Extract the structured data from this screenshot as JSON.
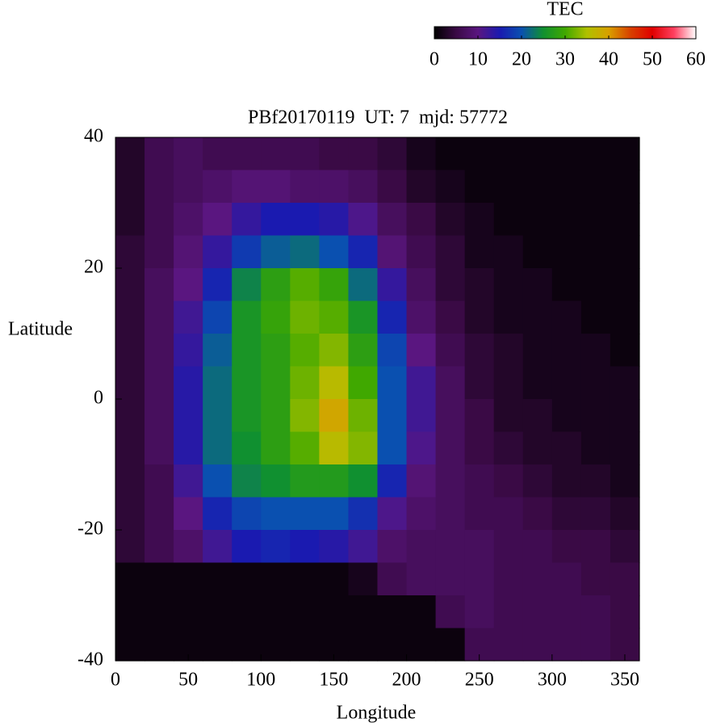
{
  "chart_data": {
    "type": "heatmap",
    "title": "PBf20170119  UT: 7  mjd: 57772",
    "x_label": "Longitude",
    "y_label": "Latitude",
    "x": [
      10,
      30,
      50,
      70,
      90,
      110,
      130,
      150,
      170,
      190,
      210,
      230,
      250,
      270,
      290,
      310,
      330,
      350
    ],
    "y": [
      37.5,
      32.5,
      27.5,
      22.5,
      17.5,
      12.5,
      7.5,
      2.5,
      -2.5,
      -7.5,
      -12.5,
      -17.5,
      -22.5,
      -27.5,
      -32.5,
      -37.5
    ],
    "z": [
      [
        3,
        6,
        7,
        6,
        6,
        6,
        6,
        5,
        5,
        4,
        2,
        1,
        1,
        1,
        1,
        1,
        1,
        1
      ],
      [
        3,
        6,
        7,
        8,
        9,
        9,
        8,
        8,
        7,
        5,
        3,
        2,
        1,
        1,
        1,
        1,
        1,
        1
      ],
      [
        3,
        6,
        8,
        10,
        13,
        15,
        15,
        14,
        11,
        7,
        5,
        3,
        2,
        1,
        1,
        1,
        1,
        1
      ],
      [
        4,
        6,
        9,
        13,
        18,
        21,
        22,
        20,
        16,
        9,
        6,
        4,
        2,
        2,
        1,
        1,
        1,
        1
      ],
      [
        4,
        7,
        10,
        16,
        24,
        28,
        31,
        29,
        22,
        13,
        7,
        4,
        3,
        2,
        2,
        1,
        1,
        1
      ],
      [
        4,
        7,
        12,
        19,
        26,
        29,
        32,
        31,
        26,
        16,
        8,
        5,
        3,
        2,
        2,
        2,
        1,
        1
      ],
      [
        4,
        7,
        13,
        21,
        26,
        28,
        31,
        33,
        28,
        19,
        10,
        6,
        4,
        3,
        2,
        2,
        2,
        1
      ],
      [
        4,
        7,
        14,
        22,
        26,
        28,
        32,
        36,
        30,
        20,
        12,
        7,
        4,
        3,
        2,
        2,
        2,
        2
      ],
      [
        4,
        7,
        14,
        22,
        26,
        28,
        33,
        39,
        32,
        20,
        12,
        7,
        5,
        3,
        3,
        2,
        2,
        2
      ],
      [
        4,
        7,
        14,
        22,
        25,
        28,
        31,
        36,
        33,
        20,
        11,
        7,
        5,
        4,
        3,
        3,
        2,
        2
      ],
      [
        4,
        6,
        12,
        20,
        24,
        25,
        27,
        27,
        25,
        16,
        9,
        7,
        6,
        5,
        4,
        3,
        3,
        2
      ],
      [
        4,
        6,
        10,
        16,
        19,
        20,
        20,
        20,
        17,
        11,
        8,
        7,
        6,
        6,
        5,
        4,
        4,
        3
      ],
      [
        4,
        6,
        8,
        12,
        15,
        16,
        15,
        14,
        12,
        8,
        7,
        7,
        7,
        6,
        6,
        5,
        5,
        4
      ],
      [
        1,
        1,
        1,
        1,
        1,
        1,
        1,
        1,
        2,
        6,
        7,
        7,
        7,
        6,
        6,
        6,
        5,
        5
      ],
      [
        1,
        1,
        1,
        1,
        1,
        1,
        1,
        1,
        1,
        1,
        1,
        6,
        7,
        6,
        6,
        6,
        6,
        5
      ],
      [
        1,
        1,
        1,
        1,
        1,
        1,
        1,
        1,
        1,
        1,
        1,
        1,
        6,
        6,
        6,
        6,
        6,
        5
      ]
    ],
    "xlim": [
      0,
      360
    ],
    "xticks": [
      0,
      50,
      100,
      150,
      200,
      250,
      300,
      350
    ],
    "ylim": [
      -40,
      40
    ],
    "yticks": [
      -40,
      -20,
      0,
      20,
      40
    ],
    "colorbar_label": "TEC",
    "zlim": [
      0,
      60
    ],
    "zticks": [
      0,
      10,
      20,
      30,
      40,
      50,
      60
    ],
    "colorscale": [
      "#000000",
      "#3a0a45",
      "#5a1680",
      "#1a1ab0",
      "#0a50b0",
      "#109030",
      "#40a800",
      "#b0c000",
      "#d8a000",
      "#d84000",
      "#e00000",
      "#ff4060",
      "#ffffff"
    ]
  }
}
